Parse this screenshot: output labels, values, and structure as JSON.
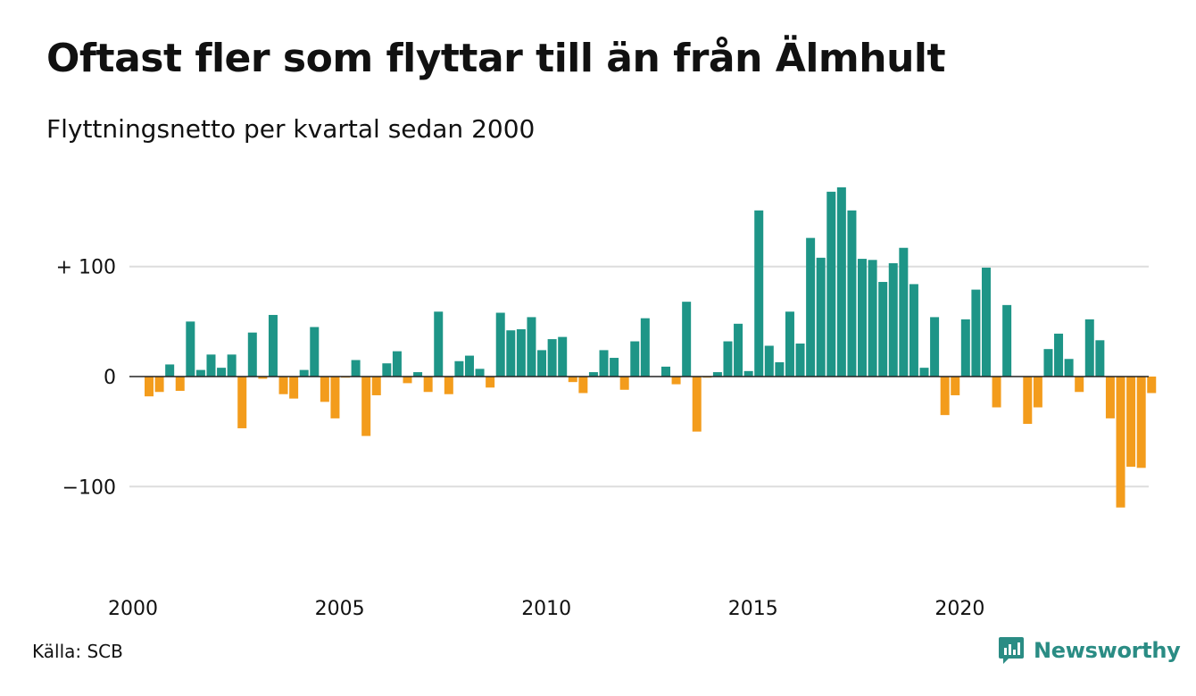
{
  "header": {
    "title": "Oftast fler som flyttar till än från Älmhult",
    "subtitle": "Flyttningsnetto per kvartal sedan 2000"
  },
  "footer": {
    "source": "Källa: SCB",
    "brand": "Newsworthy",
    "brand_icon": "newsworthy-logo-icon"
  },
  "colors": {
    "positive": "#1e9587",
    "negative": "#f39c1c",
    "grid": "#dddddd",
    "axis": "#222222",
    "brand": "#2a8c84"
  },
  "chart_data": {
    "type": "bar",
    "title": "Oftast fler som flyttar till än från Älmhult",
    "subtitle": "Flyttningsnetto per kvartal sedan 2000",
    "x_start": 2000,
    "periods_per_year": 4,
    "ylim": [
      -140,
      170
    ],
    "y_ticks": [
      {
        "value": 100,
        "label": "+ 100"
      },
      {
        "value": 0,
        "label": "0"
      },
      {
        "value": -100,
        "label": "−100"
      }
    ],
    "x_ticks": [
      {
        "value": 2000,
        "label": "2000"
      },
      {
        "value": 2005,
        "label": "2005"
      },
      {
        "value": 2010,
        "label": "2010"
      },
      {
        "value": 2015,
        "label": "2015"
      },
      {
        "value": 2020,
        "label": "2020"
      }
    ],
    "grid": true,
    "legend": "none",
    "values": [
      -18,
      -14,
      11,
      -13,
      50,
      6,
      20,
      8,
      20,
      -47,
      40,
      -2,
      56,
      -16,
      -20,
      6,
      45,
      -23,
      -38,
      -1,
      15,
      -54,
      -17,
      12,
      23,
      -6,
      4,
      -14,
      59,
      -16,
      14,
      19,
      7,
      -10,
      58,
      42,
      43,
      54,
      24,
      34,
      36,
      -5,
      -15,
      4,
      24,
      17,
      -12,
      32,
      53,
      0,
      9,
      -7,
      68,
      -50,
      -1,
      4,
      32,
      48,
      5,
      151,
      28,
      13,
      59,
      30,
      126,
      108,
      168,
      172,
      151,
      107,
      106,
      86,
      103,
      117,
      84,
      8,
      54,
      -35,
      -17,
      52,
      79,
      99,
      -28,
      65,
      0,
      -43,
      -28,
      25,
      39,
      16,
      -14,
      52,
      33,
      -38,
      -119,
      -82,
      -83,
      -15
    ]
  }
}
